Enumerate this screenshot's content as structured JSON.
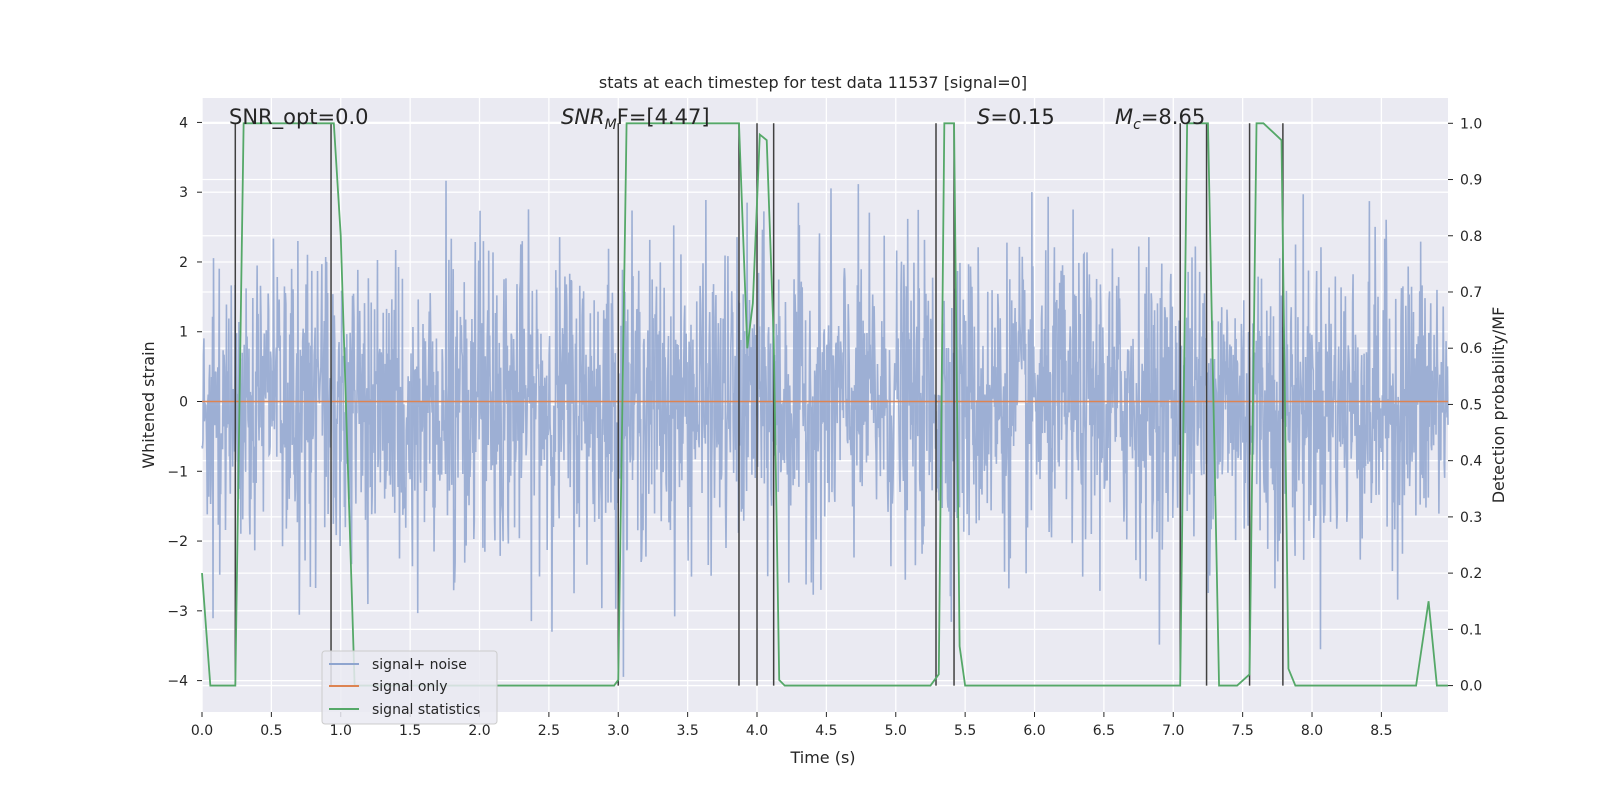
{
  "chart_data": {
    "type": "line",
    "title": "stats at each timestep for test data 11537 [signal=0]",
    "xlabel": "Time (s)",
    "ylabel_left": "Whitened strain",
    "ylabel_right": "Detection probability/MF",
    "xlim": [
      0.0,
      8.98
    ],
    "ylim_left": [
      -4.45,
      4.35
    ],
    "ylim_right": [
      -0.047,
      1.045
    ],
    "x_ticks": [
      0.0,
      0.5,
      1.0,
      1.5,
      2.0,
      2.5,
      3.0,
      3.5,
      4.0,
      4.5,
      5.0,
      5.5,
      6.0,
      6.5,
      7.0,
      7.5,
      8.0,
      8.5
    ],
    "x_tick_labels": [
      "0.0",
      "0.5",
      "1.0",
      "1.5",
      "2.0",
      "2.5",
      "3.0",
      "3.5",
      "4.0",
      "4.5",
      "5.0",
      "5.5",
      "6.0",
      "6.5",
      "7.0",
      "7.5",
      "8.0",
      "8.5"
    ],
    "y_left_ticks": [
      -4,
      -3,
      -2,
      -1,
      0,
      1,
      2,
      3,
      4
    ],
    "y_left_tick_labels": [
      "−4",
      "−3",
      "−2",
      "−1",
      "0",
      "1",
      "2",
      "3",
      "4"
    ],
    "y_right_ticks": [
      0.0,
      0.1,
      0.2,
      0.3,
      0.4,
      0.5,
      0.6,
      0.7,
      0.8,
      0.9,
      1.0
    ],
    "y_right_tick_labels": [
      "0.0",
      "0.1",
      "0.2",
      "0.3",
      "0.4",
      "0.5",
      "0.6",
      "0.7",
      "0.8",
      "0.9",
      "1.0"
    ],
    "grid": true,
    "legend_position": "lower-left",
    "annotations": {
      "snr_opt": "SNR_opt=0.0",
      "snr_mf_main": "SNR",
      "snr_mf_sub": "M",
      "snr_mf_rest": "F=[4.47]",
      "s_main": "S",
      "s_rest": "=0.15",
      "mc_main": "M",
      "mc_sub": "c",
      "mc_rest": "=8.65"
    },
    "series": [
      {
        "name": "signal+ noise",
        "color": "#8fa5cf",
        "axis": "left",
        "note": "dense noise, typical amplitude about ±1.6 with peaks up to ±4"
      },
      {
        "name": "signal only",
        "color": "#dd8452",
        "axis": "left",
        "x": [
          0.0,
          8.98
        ],
        "y": [
          0.0,
          0.0
        ]
      },
      {
        "name": "signal statistics",
        "color": "#55a868",
        "axis": "right",
        "x": [
          0.0,
          0.06,
          0.1,
          0.15,
          0.24,
          0.3,
          0.9,
          0.95,
          1.0,
          1.05,
          1.1,
          2.0,
          2.5,
          2.97,
          3.0,
          3.06,
          3.5,
          3.87,
          3.93,
          3.97,
          4.02,
          4.07,
          4.12,
          4.16,
          4.2,
          4.3,
          4.9,
          5.25,
          5.31,
          5.35,
          5.42,
          5.46,
          5.5,
          5.6,
          6.0,
          6.5,
          7.05,
          7.1,
          7.18,
          7.25,
          7.33,
          7.46,
          7.55,
          7.6,
          7.65,
          7.78,
          7.83,
          7.88,
          7.95,
          8.3,
          8.75,
          8.84,
          8.9,
          8.98
        ],
        "y": [
          0.2,
          0.0,
          0.0,
          0.0,
          0.0,
          1.0,
          1.0,
          1.0,
          0.8,
          0.4,
          0.0,
          0.0,
          0.0,
          0.0,
          0.01,
          1.0,
          1.0,
          1.0,
          0.6,
          0.68,
          0.98,
          0.97,
          0.62,
          0.01,
          0.0,
          0.0,
          0.0,
          0.0,
          0.02,
          1.0,
          1.0,
          0.07,
          0.0,
          0.0,
          0.0,
          0.0,
          0.0,
          1.0,
          1.0,
          1.0,
          0.0,
          0.0,
          0.02,
          1.0,
          1.0,
          0.97,
          0.03,
          0.0,
          0.0,
          0.0,
          0.0,
          0.15,
          0.0,
          0.0
        ]
      }
    ],
    "vertical_markers": {
      "color": "#404040",
      "x": [
        0.24,
        0.93,
        3.0,
        3.87,
        4.0,
        4.12,
        5.29,
        5.42,
        7.05,
        7.24,
        7.55,
        7.79
      ]
    }
  }
}
